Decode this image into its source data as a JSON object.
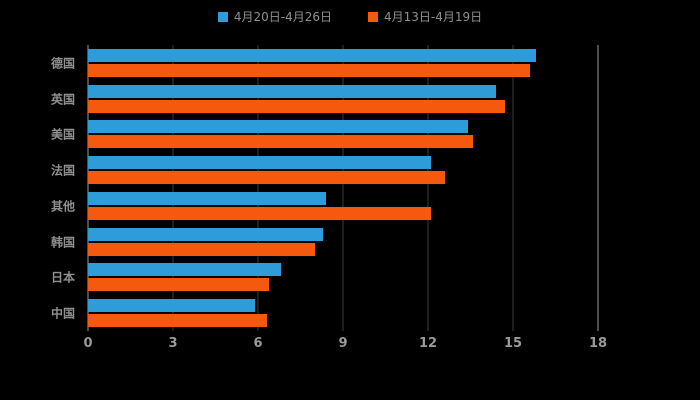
{
  "chart_data": {
    "type": "bar",
    "orientation": "horizontal",
    "title": "",
    "xlabel": "",
    "ylabel": "",
    "categories": [
      "德国",
      "英国",
      "美国",
      "法国",
      "其他",
      "韩国",
      "日本",
      "中国"
    ],
    "series": [
      {
        "name": "4月20日-4月26日",
        "color": "#2E9CD9",
        "values": [
          15.8,
          14.4,
          13.4,
          12.1,
          8.4,
          8.3,
          6.8,
          5.9
        ]
      },
      {
        "name": "4月13日-4月19日",
        "color": "#F4590D",
        "values": [
          15.6,
          14.7,
          13.6,
          12.6,
          12.1,
          8.0,
          6.4,
          6.3
        ]
      }
    ],
    "xlim": [
      0,
      18
    ],
    "xticks": [
      0,
      3,
      6,
      9,
      12,
      15,
      18
    ],
    "grid": true,
    "legend_position": "top",
    "background": "#000000",
    "grid_color": "#3c3c3c",
    "axis_edge_color": "#9a9a9a",
    "label_color": "#8f8f8f"
  }
}
